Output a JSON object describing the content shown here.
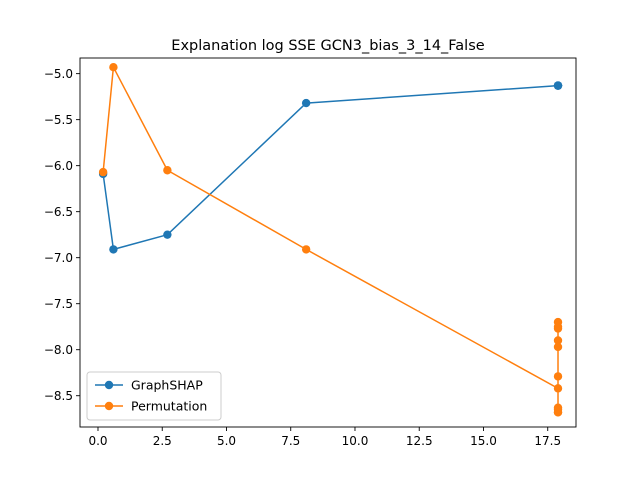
{
  "chart_data": {
    "type": "line",
    "title": "Explanation log SSE GCN3_bias_3_14_False",
    "xlabel": "",
    "ylabel": "",
    "xlim": [
      -0.7,
      18.6
    ],
    "ylim": [
      -8.84,
      -4.83
    ],
    "xticks": [
      0,
      2.5,
      5,
      7.5,
      10,
      12.5,
      15,
      17.5
    ],
    "xtick_labels": [
      "0.0",
      "2.5",
      "5.0",
      "7.5",
      "10.0",
      "12.5",
      "15.0",
      "17.5"
    ],
    "yticks": [
      -5.0,
      -5.5,
      -6.0,
      -6.5,
      -7.0,
      -7.5,
      -8.0,
      -8.5
    ],
    "ytick_labels": [
      "−5.0",
      "−5.5",
      "−6.0",
      "−6.5",
      "−7.0",
      "−7.5",
      "−8.0",
      "−8.5"
    ],
    "grid": false,
    "legend": "lower-left",
    "series": [
      {
        "name": "GraphSHAP",
        "color": "#1f77b4",
        "x": [
          0.2,
          0.6,
          2.7,
          8.1,
          17.9,
          17.9,
          17.9,
          17.9
        ],
        "y": [
          -6.09,
          -6.91,
          -6.75,
          -5.32,
          -5.13,
          -5.13,
          -5.13,
          -5.13
        ]
      },
      {
        "name": "Permutation",
        "color": "#ff7f0e",
        "x": [
          0.2,
          0.6,
          2.7,
          8.1,
          17.9,
          17.9,
          17.9,
          17.9,
          17.9,
          17.9,
          17.9,
          17.9,
          17.9,
          17.9,
          17.9
        ],
        "y": [
          -6.07,
          -4.93,
          -6.05,
          -6.91,
          -8.42,
          -7.7,
          -8.68,
          -7.77,
          -8.29,
          -7.9,
          -8.65,
          -7.97,
          -8.63,
          -7.75,
          -8.68
        ]
      }
    ]
  }
}
